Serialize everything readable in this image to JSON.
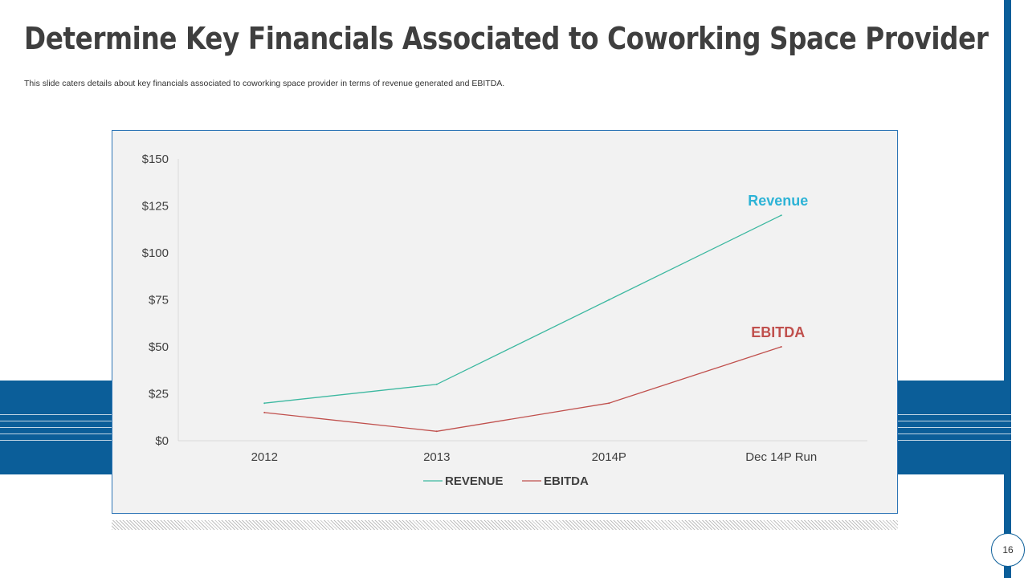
{
  "slide": {
    "title": "Determine Key Financials Associated to Coworking Space Provider",
    "subtitle": "This slide caters details about key financials associated to coworking space provider in terms of revenue generated and EBITDA.",
    "page_number": "16"
  },
  "colors": {
    "brand_blue": "#0b5e99",
    "revenue": "#3cb8a0",
    "ebitda": "#c0504d",
    "revenue_label": "#2db3d6",
    "ebitda_label": "#c0504d"
  },
  "chart_data": {
    "type": "line",
    "title": "",
    "categories": [
      "2012",
      "2013",
      "2014P",
      "Dec 14P Run"
    ],
    "series": [
      {
        "name": "REVENUE",
        "values": [
          20,
          30,
          75,
          120
        ],
        "label": "Revenue"
      },
      {
        "name": "EBITDA",
        "values": [
          15,
          5,
          20,
          50
        ],
        "label": "EBITDA"
      }
    ],
    "y_ticks": [
      "$0",
      "$25",
      "$50",
      "$75",
      "$100",
      "$125",
      "$150"
    ],
    "ylim": [
      0,
      150
    ],
    "xlabel": "",
    "ylabel": "",
    "legend": "bottom",
    "grid": false
  }
}
